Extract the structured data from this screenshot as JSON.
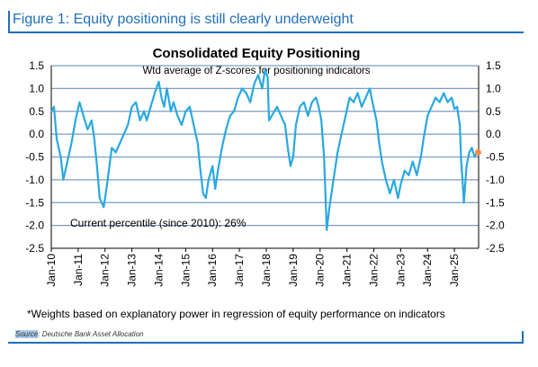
{
  "figure": {
    "title": "Figure 1: Equity positioning is still clearly underweight",
    "footnote": "*Weights based on explanatory power in regression of equity performance on indicators",
    "source_label": "Source",
    "source_text": ": Deutsche Bank Asset Allocation"
  },
  "chart_data": {
    "type": "line",
    "title": "Consolidated Equity Positioning",
    "subtitle": "Wtd average of Z-scores for positioning indicators",
    "annotation": "Current percentile (since 2010): 26%",
    "ylim": [
      -2.5,
      1.5
    ],
    "yticks": [
      "1.5",
      "1.0",
      "0.5",
      "0.0",
      "-0.5",
      "-1.0",
      "-1.5",
      "-2.0",
      "-2.5"
    ],
    "ytick_values": [
      1.5,
      1.0,
      0.5,
      0.0,
      -0.5,
      -1.0,
      -1.5,
      -2.0,
      -2.5
    ],
    "xlim": [
      2010.0,
      2025.9
    ],
    "xticks": [
      "Jan-10",
      "Jan-11",
      "Jan-12",
      "Jan-13",
      "Jan-14",
      "Jan-15",
      "Jan-16",
      "Jan-17",
      "Jan-18",
      "Jan-19",
      "Jan-20",
      "Jan-21",
      "Jan-22",
      "Jan-23",
      "Jan-24",
      "Jan-25"
    ],
    "xtick_values": [
      2010,
      2011,
      2012,
      2013,
      2014,
      2015,
      2016,
      2017,
      2018,
      2019,
      2020,
      2021,
      2022,
      2023,
      2024,
      2025
    ],
    "grid": "horizontal",
    "line_color": "#29a8e0",
    "marker_color": "#f28a47",
    "grid_color": "#7a9cc6",
    "series": [
      {
        "x": [
          2010.0,
          2010.1,
          2010.2,
          2010.35,
          2010.45,
          2010.6,
          2010.75,
          2010.9,
          2011.05,
          2011.2,
          2011.35,
          2011.5,
          2011.6,
          2011.7,
          2011.8,
          2011.95,
          2012.1,
          2012.25,
          2012.4,
          2012.55,
          2012.7,
          2012.85,
          2013.0,
          2013.15,
          2013.3,
          2013.45,
          2013.55,
          2013.7,
          2013.85,
          2014.0,
          2014.1,
          2014.2,
          2014.3,
          2014.45,
          2014.55,
          2014.7,
          2014.85,
          2015.0,
          2015.15,
          2015.3,
          2015.45,
          2015.55,
          2015.65,
          2015.75,
          2015.85,
          2016.0,
          2016.1,
          2016.2,
          2016.35,
          2016.5,
          2016.65,
          2016.8,
          2016.95,
          2017.1,
          2017.25,
          2017.4,
          2017.55,
          2017.7,
          2017.85,
          2017.95,
          2018.05,
          2018.1,
          2018.2,
          2018.3,
          2018.4,
          2018.55,
          2018.7,
          2018.8,
          2018.9,
          2019.0,
          2019.1,
          2019.25,
          2019.4,
          2019.55,
          2019.7,
          2019.85,
          2019.95,
          2020.05,
          2020.15,
          2020.25,
          2020.35,
          2020.5,
          2020.65,
          2020.8,
          2020.95,
          2021.1,
          2021.25,
          2021.4,
          2021.55,
          2021.7,
          2021.85,
          2021.95,
          2022.1,
          2022.2,
          2022.3,
          2022.45,
          2022.6,
          2022.75,
          2022.9,
          2023.0,
          2023.15,
          2023.3,
          2023.45,
          2023.6,
          2023.75,
          2023.85,
          2024.0,
          2024.15,
          2024.3,
          2024.45,
          2024.6,
          2024.75,
          2024.9,
          2025.0,
          2025.1,
          2025.2,
          2025.25,
          2025.3,
          2025.35,
          2025.45,
          2025.55,
          2025.65,
          2025.75,
          2025.85
        ],
        "y": [
          0.5,
          0.6,
          -0.1,
          -0.5,
          -1.0,
          -0.6,
          -0.2,
          0.3,
          0.7,
          0.4,
          0.1,
          0.3,
          -0.1,
          -0.7,
          -1.4,
          -1.6,
          -1.0,
          -0.3,
          -0.4,
          -0.2,
          0.0,
          0.2,
          0.6,
          0.7,
          0.3,
          0.5,
          0.3,
          0.6,
          0.9,
          1.15,
          0.8,
          0.6,
          1.0,
          0.5,
          0.7,
          0.4,
          0.2,
          0.5,
          0.6,
          0.2,
          -0.2,
          -0.8,
          -1.3,
          -1.4,
          -1.0,
          -0.7,
          -1.2,
          -0.8,
          -0.3,
          0.1,
          0.4,
          0.5,
          0.8,
          1.0,
          0.9,
          0.7,
          1.1,
          1.3,
          1.0,
          1.4,
          1.25,
          0.3,
          0.4,
          0.5,
          0.6,
          0.4,
          0.2,
          -0.3,
          -0.7,
          -0.5,
          0.2,
          0.6,
          0.7,
          0.4,
          0.7,
          0.8,
          0.6,
          0.3,
          -0.5,
          -2.1,
          -1.6,
          -1.0,
          -0.4,
          0.0,
          0.4,
          0.8,
          0.7,
          0.9,
          0.6,
          0.8,
          1.0,
          0.7,
          0.3,
          -0.2,
          -0.6,
          -1.0,
          -1.3,
          -1.0,
          -1.4,
          -1.1,
          -0.8,
          -0.9,
          -0.6,
          -0.9,
          -0.5,
          -0.1,
          0.4,
          0.6,
          0.8,
          0.7,
          0.9,
          0.7,
          0.8,
          0.55,
          0.6,
          0.2,
          -0.6,
          -1.0,
          -1.5,
          -0.7,
          -0.4,
          -0.3,
          -0.5,
          -0.4
        ]
      }
    ],
    "last_point": {
      "x": 2025.88,
      "y": -0.4
    }
  }
}
